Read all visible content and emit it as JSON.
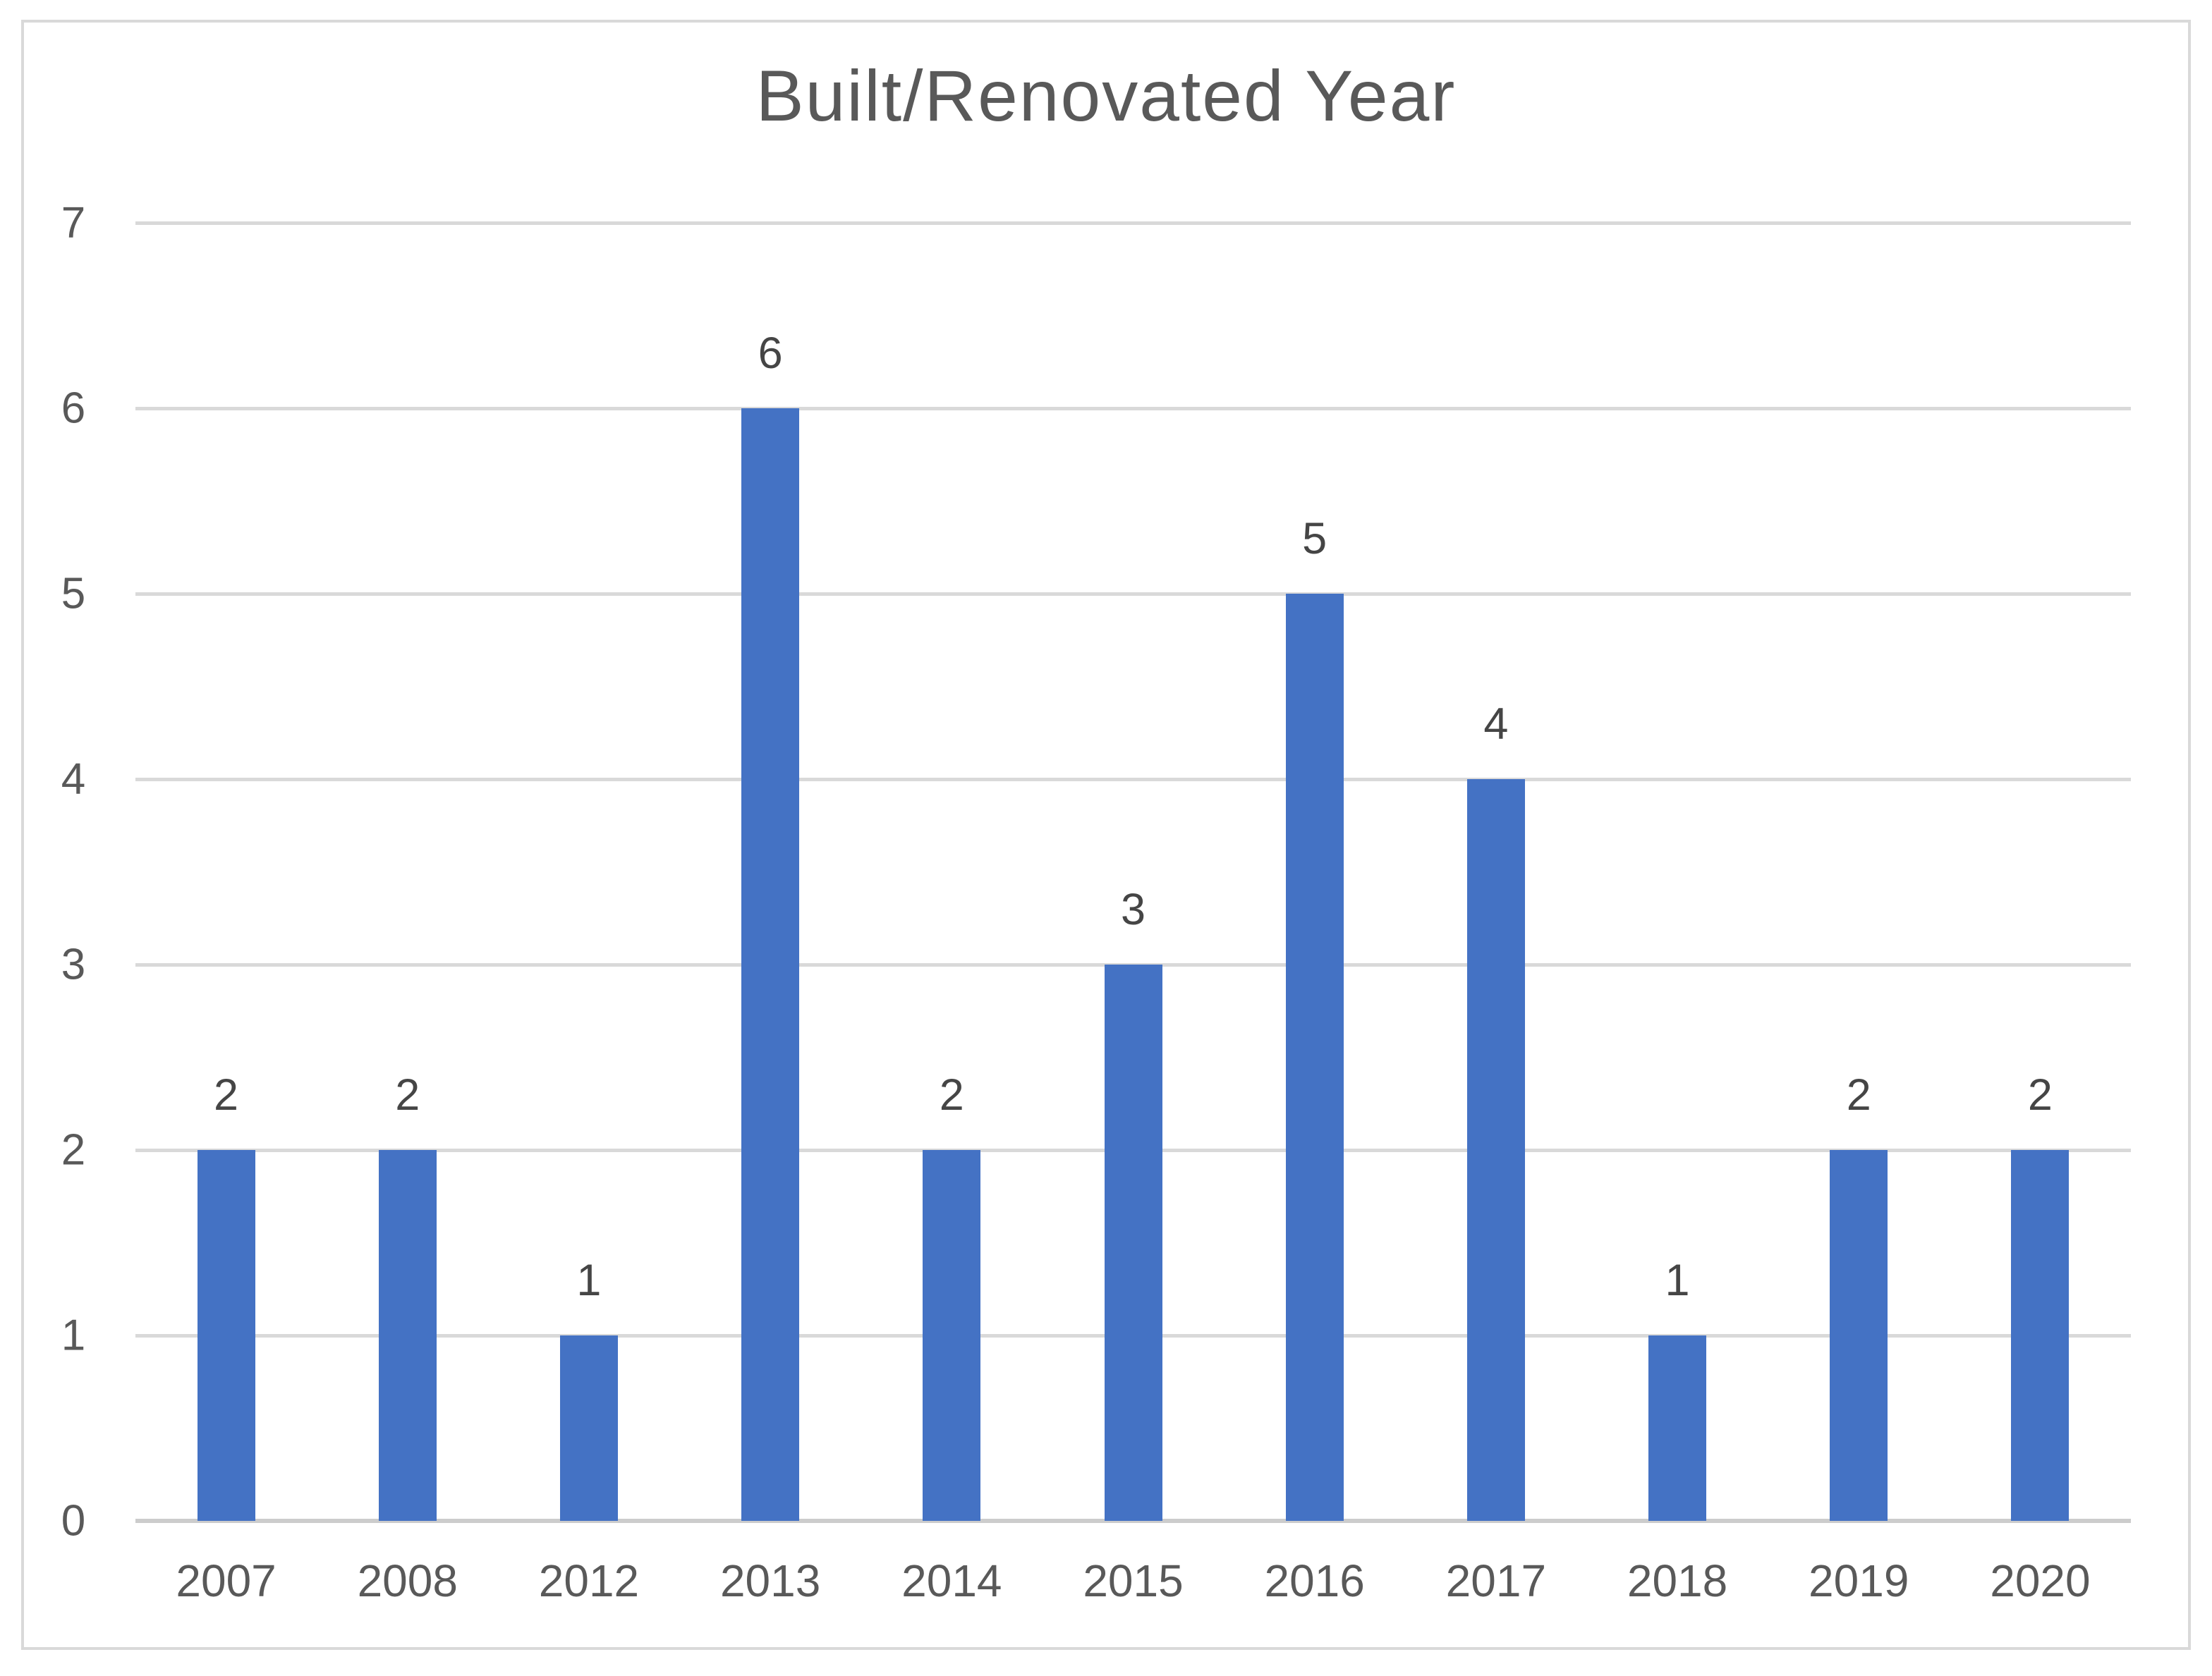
{
  "chart_data": {
    "type": "bar",
    "title": "Built/Renovated Year",
    "categories": [
      "2007",
      "2008",
      "2012",
      "2013",
      "2014",
      "2015",
      "2016",
      "2017",
      "2018",
      "2019",
      "2020"
    ],
    "values": [
      2,
      2,
      1,
      6,
      2,
      3,
      5,
      4,
      1,
      2,
      2
    ],
    "xlabel": "",
    "ylabel": "",
    "ylim": [
      0,
      7
    ],
    "yticks": [
      0,
      1,
      2,
      3,
      4,
      5,
      6,
      7
    ],
    "grid": "horizontal",
    "legend": "none",
    "data_labels": true,
    "bar_color": "#4472C4",
    "gridline_color": "#D9D9D9",
    "axis_line_color": "#CCCCCC",
    "title_color": "#595959",
    "tick_label_color": "#595959",
    "data_label_color": "#454545",
    "frame_border_color": "#D9D9D9",
    "background_color": "#FFFFFF"
  }
}
